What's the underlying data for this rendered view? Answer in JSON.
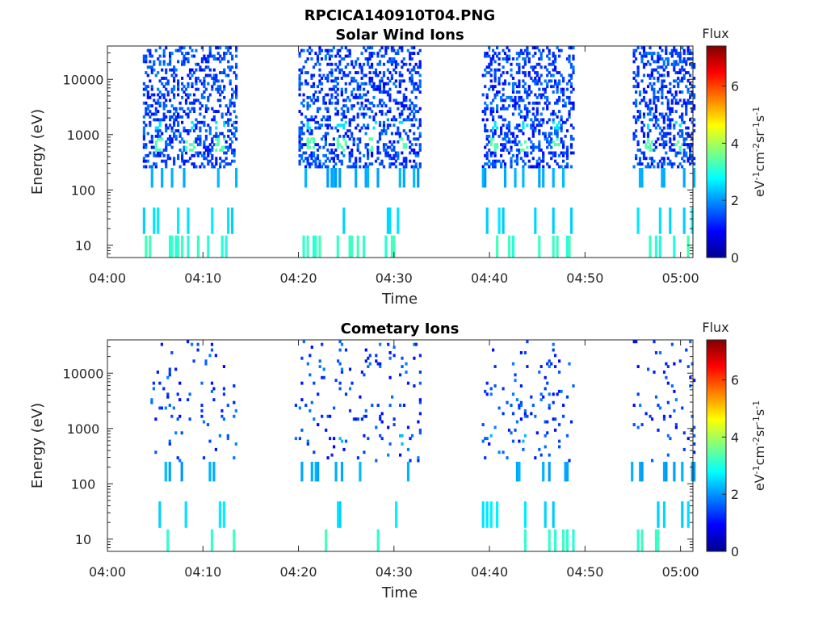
{
  "figure": {
    "title": "RPCICA140910T04.PNG"
  },
  "chart_data": [
    {
      "type": "heatmap",
      "title": "Solar Wind Ions",
      "xlabel": "Time",
      "ylabel": "Energy (eV)",
      "x_tick_labels": [
        "04:00",
        "04:10",
        "04:20",
        "04:30",
        "04:40",
        "04:50",
        "05:00"
      ],
      "x_ticks_min": [
        0,
        10,
        20,
        30,
        40,
        50,
        60
      ],
      "xlim_min": [
        0,
        61.3
      ],
      "y_scale": "log",
      "y_tick_labels": [
        "10",
        "100",
        "1000",
        "10000"
      ],
      "y_ticks": [
        10,
        100,
        1000,
        10000
      ],
      "ylim": [
        6,
        40000
      ],
      "colorbar": {
        "label": "Flux",
        "units": "eV-1cm-2sr-1s-1",
        "ticks": [
          0,
          2,
          4,
          6
        ],
        "range": [
          0,
          7.4
        ]
      },
      "sweeps": [
        {
          "start": 3.7,
          "end": 13.3,
          "peaks": [
            5.3,
            8.5,
            11.7
          ],
          "peak_energy": 600
        },
        {
          "start": 20.0,
          "end": 32.6,
          "peaks": [
            21.2,
            24.4,
            27.6,
            30.8
          ],
          "peak_energy": 600
        },
        {
          "start": 39.2,
          "end": 48.6,
          "peaks": [
            40.3,
            43.5,
            46.8
          ],
          "peak_energy": 600
        },
        {
          "start": 55.0,
          "end": 61.3,
          "peaks": [
            56.5,
            59.8
          ],
          "peak_energy": 600
        }
      ]
    },
    {
      "type": "heatmap",
      "title": "Cometary Ions",
      "xlabel": "Time",
      "ylabel": "Energy (eV)",
      "x_tick_labels": [
        "04:00",
        "04:10",
        "04:20",
        "04:30",
        "04:40",
        "04:50",
        "05:00"
      ],
      "x_ticks_min": [
        0,
        10,
        20,
        30,
        40,
        50,
        60
      ],
      "xlim_min": [
        0,
        61.3
      ],
      "y_scale": "log",
      "y_tick_labels": [
        "10",
        "100",
        "1000",
        "10000"
      ],
      "y_ticks": [
        10,
        100,
        1000,
        10000
      ],
      "ylim": [
        6,
        40000
      ],
      "colorbar": {
        "label": "Flux",
        "units": "eV-1cm-2sr-1s-1",
        "ticks": [
          0,
          2,
          4,
          6
        ],
        "range": [
          0,
          7.4
        ]
      },
      "sweeps": [
        {
          "start": 4.3,
          "end": 13.3,
          "peaks": [
            8.5
          ],
          "peak_energy": 600
        },
        {
          "start": 19.6,
          "end": 32.6,
          "peaks": [
            24.4,
            30.8
          ],
          "peak_energy": 600
        },
        {
          "start": 39.2,
          "end": 48.6,
          "peaks": [
            40.3,
            43.5
          ],
          "peak_energy": 600
        },
        {
          "start": 54.8,
          "end": 61.3,
          "peaks": [
            59.8
          ],
          "peak_energy": 600
        }
      ]
    }
  ]
}
